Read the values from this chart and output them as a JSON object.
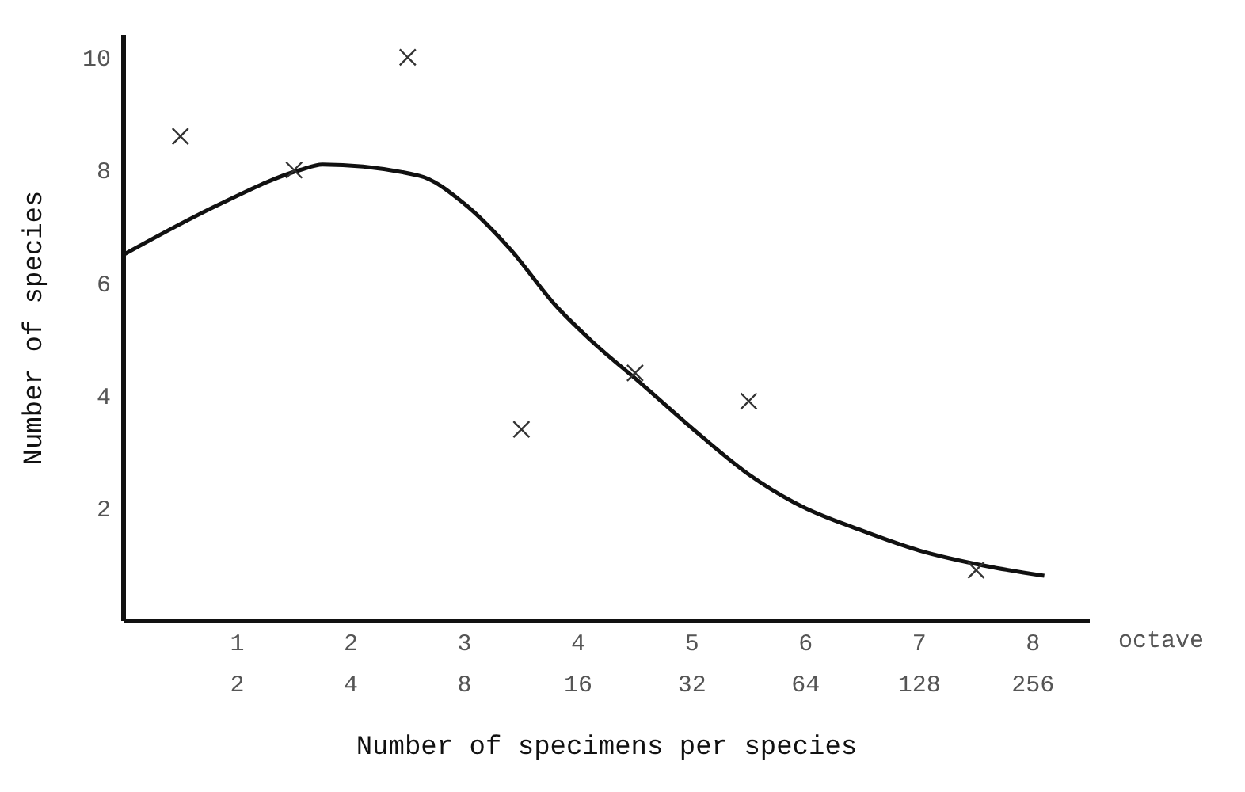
{
  "chart_data": {
    "type": "scatter",
    "xlabel": "octave",
    "ylabel": "Number of species",
    "x2label": "Number of specimens per species",
    "xlim": [
      0,
      8.5
    ],
    "ylim": [
      0,
      10.4
    ],
    "xticks": [
      1,
      2,
      3,
      4,
      5,
      6,
      7,
      8
    ],
    "x2lim": [
      1,
      362
    ],
    "x2ticks": [
      2,
      4,
      8,
      16,
      32,
      64,
      128,
      256
    ],
    "yticks": [
      2,
      4,
      6,
      8,
      10
    ],
    "log": "x2",
    "series": [
      {
        "marker": "cross",
        "color": "#333333",
        "x": [
          0.5,
          1.5,
          2.5,
          3.5,
          4.5,
          5.5,
          7.5
        ],
        "values": [
          8.6,
          8.0,
          10.0,
          3.4,
          4.4,
          3.9,
          0.9
        ]
      },
      {
        "type": "line",
        "marker": "none",
        "line_style": "solid",
        "color": "#111111",
        "x": [
          0,
          0.85,
          1.55,
          1.75,
          2.6,
          3.0,
          3.4,
          3.8,
          4.1,
          4.56,
          5.07,
          5.5,
          5.9,
          6.5,
          7.0,
          7.6,
          8.1
        ],
        "values": [
          6.5,
          7.4,
          8.0,
          8.1,
          7.9,
          7.4,
          6.6,
          5.6,
          5.0,
          4.2,
          3.3,
          2.6,
          2.1,
          1.6,
          1.25,
          0.97,
          0.8
        ]
      }
    ]
  }
}
